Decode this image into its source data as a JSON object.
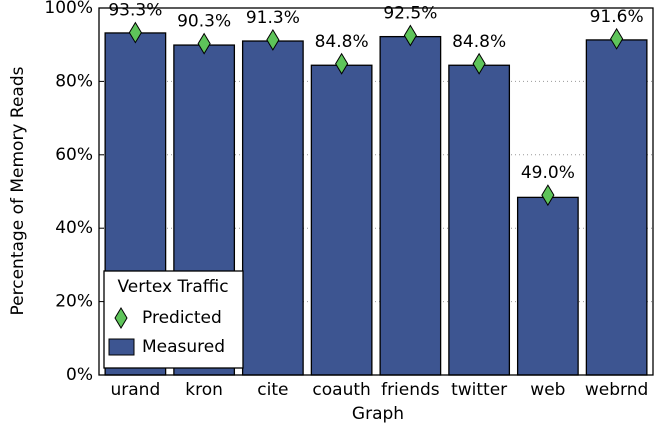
{
  "chart_data": {
    "type": "bar",
    "xlabel": "Graph",
    "ylabel": "Percentage of Memory Reads",
    "categories": [
      "urand",
      "kron",
      "cite",
      "coauth",
      "friends",
      "twitter",
      "web",
      "webrnd"
    ],
    "series": [
      {
        "name": "Measured",
        "color": "#3d5591",
        "values": [
          93.2,
          89.9,
          91.0,
          84.4,
          92.2,
          84.4,
          48.4,
          91.3
        ]
      },
      {
        "name": "Predicted",
        "color": "#5ec45a",
        "values": [
          93.3,
          90.3,
          91.3,
          84.8,
          92.5,
          84.8,
          49.0,
          91.6
        ],
        "value_labels": [
          "93.3%",
          "90.3%",
          "91.3%",
          "84.8%",
          "92.5%",
          "84.8%",
          "49.0%",
          "91.6%"
        ]
      }
    ],
    "legend_title": "Vertex Traffic",
    "legend": "lower left",
    "ylim": [
      0,
      100
    ],
    "yticks": [
      {
        "value": 0,
        "label": "0%"
      },
      {
        "value": 20,
        "label": "20%"
      },
      {
        "value": 40,
        "label": "40%"
      },
      {
        "value": 60,
        "label": "60%"
      },
      {
        "value": 80,
        "label": "80%"
      },
      {
        "value": 100,
        "label": "100%"
      }
    ],
    "grid": true
  }
}
